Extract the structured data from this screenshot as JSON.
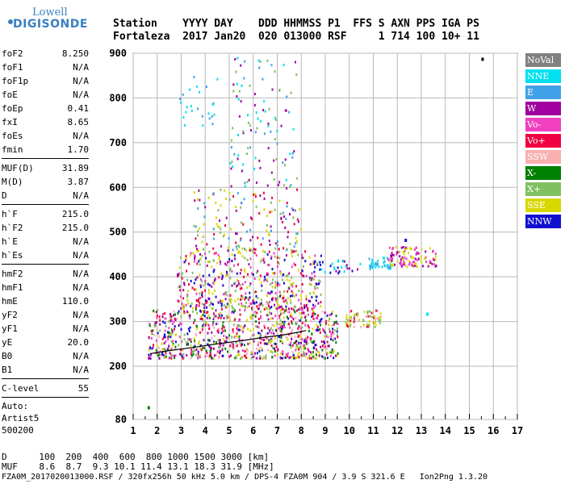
{
  "logo": {
    "line1": "Lowell",
    "line2": "DIGISONDE"
  },
  "header": {
    "line1": "Station    YYYY DAY    DDD HHMMSS P1  FFS S AXN PPS IGA PS",
    "line2": "Fortaleza  2017 Jan20  020 013000 RSF     1 714 100 10+ 11"
  },
  "params": {
    "group1": [
      {
        "name": "foF2",
        "value": "8.250"
      },
      {
        "name": "foF1",
        "value": "N/A"
      },
      {
        "name": "foF1p",
        "value": "N/A"
      },
      {
        "name": "foE",
        "value": "N/A"
      },
      {
        "name": "foEp",
        "value": "0.41"
      },
      {
        "name": "fxI",
        "value": "8.65"
      },
      {
        "name": "foEs",
        "value": "N/A"
      },
      {
        "name": "fmin",
        "value": "1.70"
      }
    ],
    "group2": [
      {
        "name": "MUF(D)",
        "value": "31.89"
      },
      {
        "name": "M(D)",
        "value": "3.87"
      },
      {
        "name": "D",
        "value": "N/A"
      }
    ],
    "group3": [
      {
        "name": "h`F",
        "value": "215.0"
      },
      {
        "name": "h`F2",
        "value": "215.0"
      },
      {
        "name": "h`E",
        "value": "N/A"
      },
      {
        "name": "h`Es",
        "value": "N/A"
      }
    ],
    "group4": [
      {
        "name": "hmF2",
        "value": "N/A"
      },
      {
        "name": "hmF1",
        "value": "N/A"
      },
      {
        "name": "hmE",
        "value": "110.0"
      },
      {
        "name": "yF2",
        "value": "N/A"
      },
      {
        "name": "yF1",
        "value": "N/A"
      },
      {
        "name": "yE",
        "value": "20.0"
      },
      {
        "name": "B0",
        "value": "N/A"
      },
      {
        "name": "B1",
        "value": "N/A"
      }
    ],
    "group5": [
      {
        "name": "C-level",
        "value": "55"
      }
    ],
    "auto": [
      "Auto:",
      "Artist5",
      "500200"
    ]
  },
  "legend": [
    {
      "label": "NoVal",
      "color": "#808080"
    },
    {
      "label": "NNE",
      "color": "#00e0f0"
    },
    {
      "label": "E",
      "color": "#40a0e8"
    },
    {
      "label": "W",
      "color": "#a000a0"
    },
    {
      "label": "Vo-",
      "color": "#f040c0"
    },
    {
      "label": "Vo+",
      "color": "#f00040"
    },
    {
      "label": "SSW",
      "color": "#f8b0b0"
    },
    {
      "label": "X-",
      "color": "#008000"
    },
    {
      "label": "X+",
      "color": "#80c060"
    },
    {
      "label": "SSE",
      "color": "#d8d800"
    },
    {
      "label": "NNW",
      "color": "#1010d0"
    }
  ],
  "footer": {
    "line1": "D      100  200  400  600  800 1000 1500 3000 [km]",
    "line2": "MUF    8.6  8.7  9.3 10.1 11.4 13.1 18.3 31.9 [MHz]",
    "line3": "FZA0M_2017020013000.RSF / 320fx256h 50 kHz 5.0 km / DPS-4 FZA0M 904 / 3.9 S 321.6 E   Ion2Png 1.3.20"
  },
  "chart_data": {
    "type": "scatter",
    "xlim": [
      1,
      17
    ],
    "ylim": [
      80,
      900
    ],
    "xticks": [
      "1",
      "2",
      "3",
      "4",
      "5",
      "6",
      "7",
      "8",
      "9",
      "10",
      "11",
      "12",
      "13",
      "14",
      "15",
      "16",
      "17"
    ],
    "yticks": [
      "80",
      "200",
      "300",
      "400",
      "500",
      "600",
      "700",
      "800",
      "900"
    ],
    "grid": true,
    "trace": [
      [
        1.7,
        228
      ],
      [
        2.5,
        235
      ],
      [
        3.5,
        242
      ],
      [
        4.5,
        250
      ],
      [
        5.5,
        257
      ],
      [
        6.5,
        265
      ],
      [
        7.5,
        272
      ],
      [
        8.2,
        280
      ]
    ],
    "clusters": [
      {
        "x": [
          1.6,
          9.5
        ],
        "y": [
          220,
          330
        ],
        "colors": [
          "#f00040",
          "#a000a0",
          "#f040c0",
          "#1010d0",
          "#d8d800",
          "#80c060",
          "#008000",
          "#f8b0b0"
        ],
        "n": 900
      },
      {
        "x": [
          2.8,
          8.8
        ],
        "y": [
          330,
          460
        ],
        "colors": [
          "#d8d800",
          "#f00040",
          "#a000a0",
          "#f040c0",
          "#1010d0",
          "#80c060"
        ],
        "n": 500
      },
      {
        "x": [
          3.5,
          8.0
        ],
        "y": [
          460,
          600
        ],
        "colors": [
          "#a000a0",
          "#f00040",
          "#d8d800",
          "#40a0e8",
          "#80c060"
        ],
        "n": 160
      },
      {
        "x": [
          5.0,
          7.8
        ],
        "y": [
          600,
          900
        ],
        "colors": [
          "#40a0e8",
          "#00e0f0",
          "#a000a0",
          "#80c060"
        ],
        "n": 110
      },
      {
        "x": [
          2.9,
          4.5
        ],
        "y": [
          740,
          860
        ],
        "colors": [
          "#40a0e8",
          "#00e0f0"
        ],
        "n": 25
      },
      {
        "x": [
          9.8,
          11.3
        ],
        "y": [
          290,
          330
        ],
        "colors": [
          "#d8d800",
          "#f8b0b0",
          "#f00040",
          "#80c060"
        ],
        "n": 70
      },
      {
        "x": [
          10.8,
          11.7
        ],
        "y": [
          420,
          445
        ],
        "colors": [
          "#00e0f0",
          "#40a0e8"
        ],
        "n": 40
      },
      {
        "x": [
          11.6,
          13.6
        ],
        "y": [
          425,
          470
        ],
        "colors": [
          "#a000a0",
          "#f040c0",
          "#d8d800"
        ],
        "n": 110
      },
      {
        "x": [
          8.3,
          10.5
        ],
        "y": [
          410,
          440
        ],
        "colors": [
          "#1010d0",
          "#a000a0",
          "#00e0f0"
        ],
        "n": 30
      }
    ],
    "singles": [
      [
        1.6,
        110,
        "#008000"
      ],
      [
        15.5,
        890,
        "#000000"
      ],
      [
        13.2,
        320,
        "#00e0f0"
      ],
      [
        12.3,
        485,
        "#1010d0"
      ]
    ]
  }
}
